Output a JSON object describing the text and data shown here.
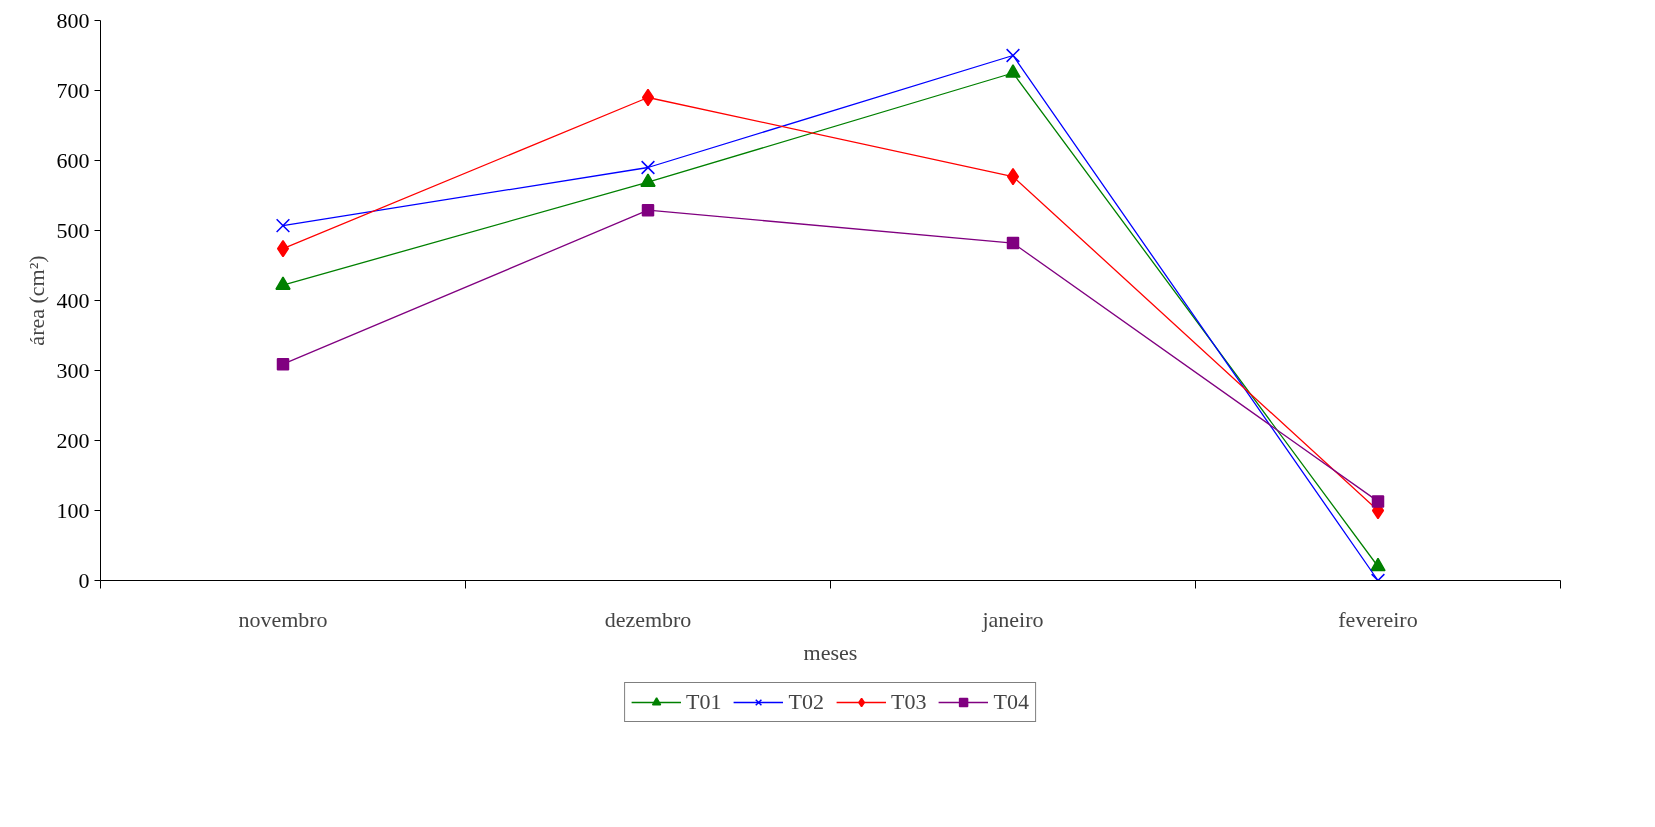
{
  "chart_data": {
    "type": "line",
    "xlabel": "meses",
    "ylabel": "área (cm²)",
    "categories": [
      "novembro",
      "dezembro",
      "janeiro",
      "fevereiro"
    ],
    "ylim": [
      0,
      800
    ],
    "yticks": [
      0,
      100,
      200,
      300,
      400,
      500,
      600,
      700,
      800
    ],
    "grid": false,
    "legend": "bottom",
    "series": [
      {
        "name": "T01",
        "color": "#008000",
        "marker": "triangle",
        "values": [
          422,
          569,
          725,
          20
        ]
      },
      {
        "name": "T02",
        "color": "#0000ff",
        "marker": "cross",
        "values": [
          507,
          590,
          750,
          0
        ]
      },
      {
        "name": "T03",
        "color": "#ff0000",
        "marker": "diamond",
        "values": [
          474,
          690,
          577,
          100
        ]
      },
      {
        "name": "T04",
        "color": "#800080",
        "marker": "square",
        "values": [
          309,
          529,
          482,
          113
        ]
      }
    ]
  }
}
